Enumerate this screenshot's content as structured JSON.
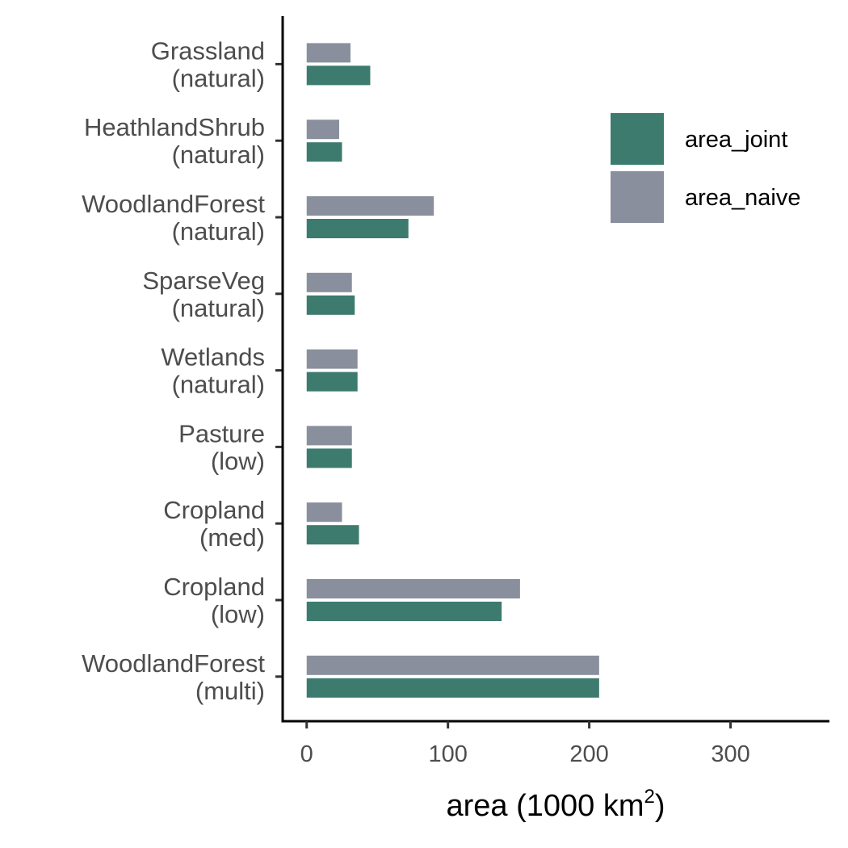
{
  "chart_data": {
    "type": "bar",
    "orientation": "horizontal",
    "categories": [
      [
        "Grassland",
        "(natural)"
      ],
      [
        "HeathlandShrub",
        "(natural)"
      ],
      [
        "WoodlandForest",
        "(natural)"
      ],
      [
        "SparseVeg",
        "(natural)"
      ],
      [
        "Wetlands",
        "(natural)"
      ],
      [
        "Pasture",
        "(low)"
      ],
      [
        "Cropland",
        "(med)"
      ],
      [
        "Cropland",
        "(low)"
      ],
      [
        "WoodlandForest",
        "(multi)"
      ]
    ],
    "series": [
      {
        "name": "area_naive",
        "color": "#8a8f9e",
        "values": [
          31,
          23,
          90,
          32,
          36,
          32,
          25,
          151,
          207
        ]
      },
      {
        "name": "area_joint",
        "color": "#3d7b6e",
        "values": [
          45,
          25,
          72,
          34,
          36,
          32,
          37,
          138,
          207
        ]
      }
    ],
    "xlabel": "area (1000 km",
    "xlabel_sup": "2",
    "xlabel_close": ")",
    "xticks": [
      0,
      100,
      200,
      300
    ],
    "xlim": [
      -17,
      370
    ],
    "legend": {
      "placement": "top-right",
      "order": [
        "area_joint",
        "area_naive"
      ]
    },
    "grid": false
  }
}
